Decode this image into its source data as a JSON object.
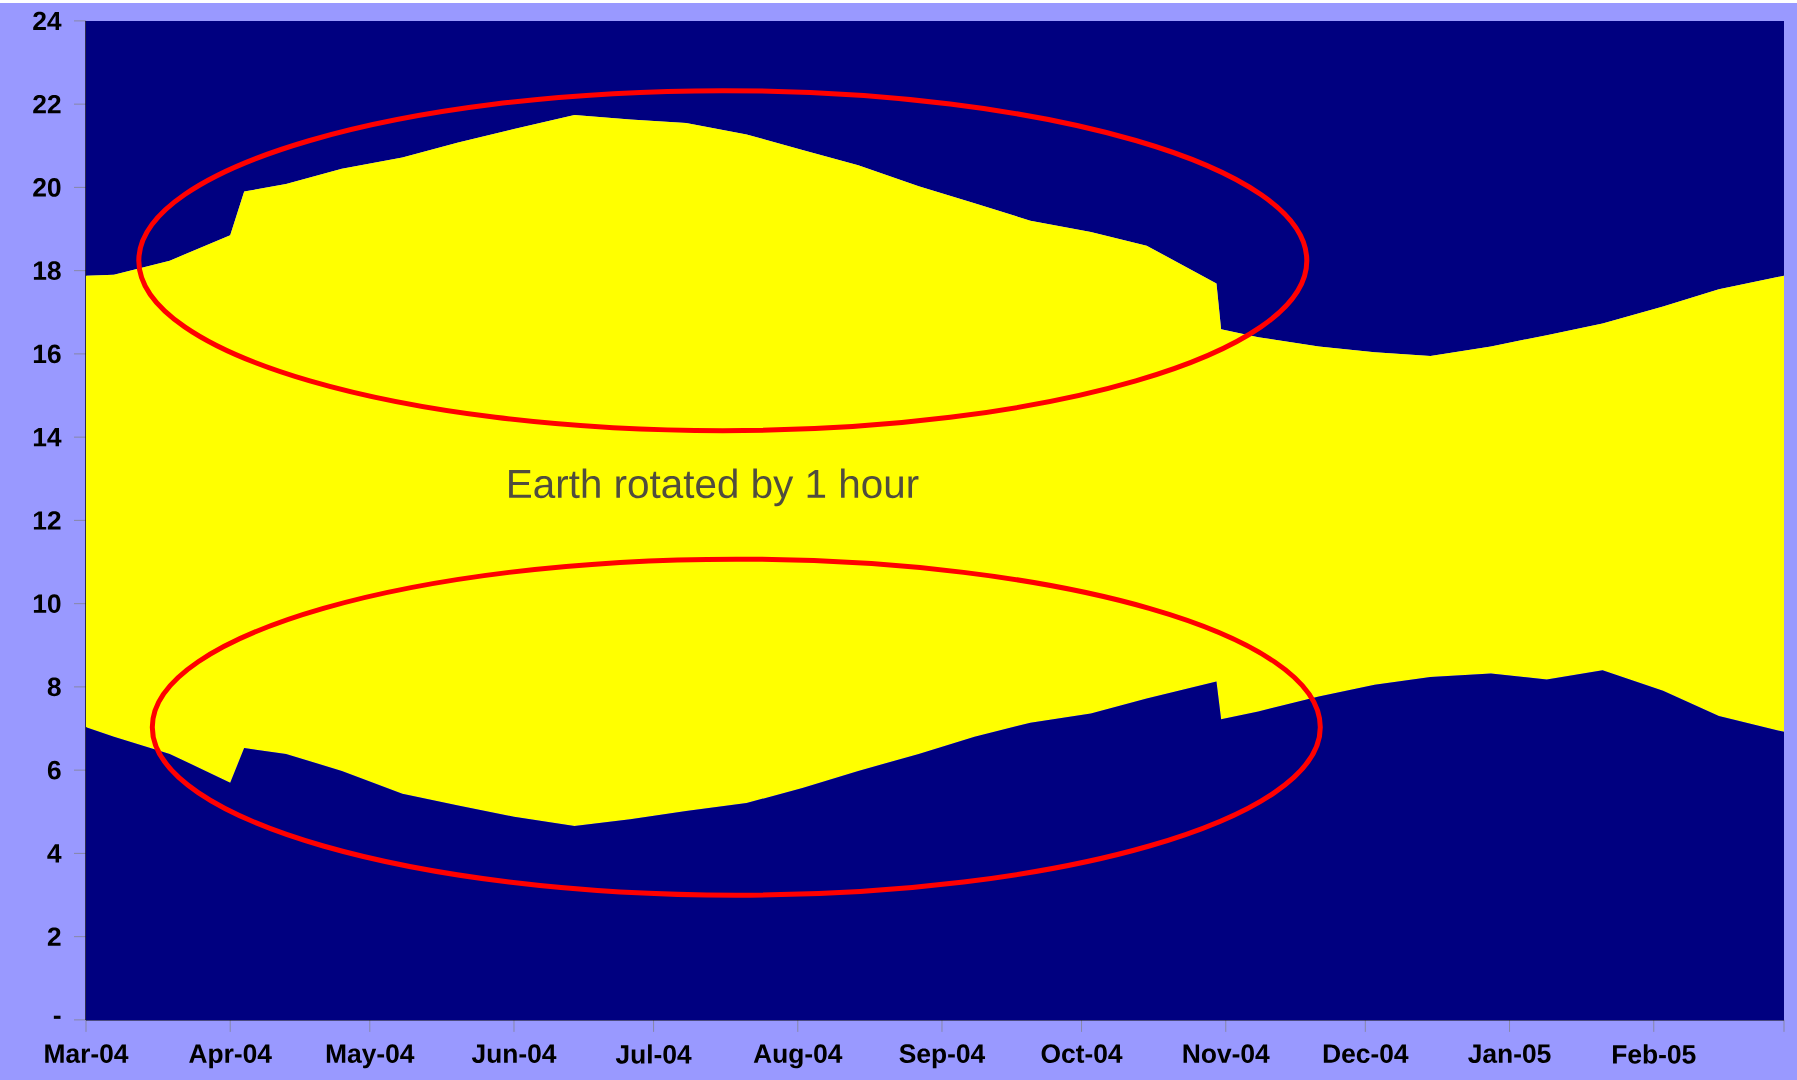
{
  "chart_data": {
    "type": "area",
    "stacked": true,
    "x": [
      "2004-03-01",
      "2004-03-07",
      "2004-03-19",
      "2004-04-01",
      "2004-04-04",
      "2004-04-13",
      "2004-04-25",
      "2004-05-08",
      "2004-05-20",
      "2004-06-01",
      "2004-06-14",
      "2004-06-26",
      "2004-07-08",
      "2004-07-21",
      "2004-08-02",
      "2004-08-14",
      "2004-08-27",
      "2004-09-08",
      "2004-09-20",
      "2004-10-03",
      "2004-10-15",
      "2004-10-30",
      "2004-10-31",
      "2004-11-08",
      "2004-11-21",
      "2004-12-03",
      "2004-12-15",
      "2004-12-28",
      "2005-01-09",
      "2005-01-21",
      "2005-02-03",
      "2005-02-15",
      "2005-03-01"
    ],
    "series": [
      {
        "color": "#000080",
        "values": [
          7.03,
          6.8,
          6.39,
          5.7,
          6.53,
          6.39,
          5.98,
          5.43,
          5.15,
          4.88,
          4.66,
          4.82,
          5.02,
          5.21,
          5.57,
          5.98,
          6.39,
          6.8,
          7.14,
          7.36,
          7.72,
          8.13,
          7.22,
          7.41,
          7.77,
          8.05,
          8.24,
          8.32,
          8.18,
          8.4,
          7.91,
          7.3,
          6.92
        ]
      },
      {
        "color": "#ffff00",
        "values": [
          10.85,
          11.1,
          11.85,
          13.15,
          13.37,
          13.69,
          14.47,
          15.29,
          15.93,
          16.52,
          17.08,
          16.81,
          16.53,
          16.06,
          15.33,
          14.55,
          13.64,
          12.82,
          12.06,
          11.57,
          10.88,
          9.56,
          9.37,
          8.99,
          8.41,
          7.99,
          7.71,
          7.86,
          8.27,
          8.33,
          9.23,
          10.25,
          10.96
        ]
      },
      {
        "color": "#000080",
        "values": [
          6.12,
          6.1,
          5.76,
          5.15,
          4.1,
          3.92,
          3.55,
          3.28,
          2.92,
          2.6,
          2.26,
          2.37,
          2.45,
          2.73,
          3.1,
          3.47,
          3.97,
          4.38,
          4.8,
          5.07,
          5.4,
          6.31,
          7.41,
          7.6,
          7.82,
          7.96,
          8.05,
          7.82,
          7.55,
          7.27,
          6.86,
          6.45,
          6.12
        ]
      }
    ],
    "xlim": [
      "2004-03-01",
      "2005-03-01"
    ],
    "xticks": [
      {
        "value": "2004-03-01",
        "label": "Mar-04"
      },
      {
        "value": "2004-04-01",
        "label": "Apr-04"
      },
      {
        "value": "2004-05-01",
        "label": "May-04"
      },
      {
        "value": "2004-06-01",
        "label": "Jun-04"
      },
      {
        "value": "2004-07-01",
        "label": "Jul-04"
      },
      {
        "value": "2004-08-01",
        "label": "Aug-04"
      },
      {
        "value": "2004-09-01",
        "label": "Sep-04"
      },
      {
        "value": "2004-10-01",
        "label": "Oct-04"
      },
      {
        "value": "2004-11-01",
        "label": "Nov-04"
      },
      {
        "value": "2004-12-01",
        "label": "Dec-04"
      },
      {
        "value": "2005-01-01",
        "label": "Jan-05"
      },
      {
        "value": "2005-02-01",
        "label": "Feb-05"
      },
      {
        "value": "2005-03-01",
        "label": null
      }
    ],
    "ylim": [
      0,
      24
    ],
    "yticks": [
      {
        "value": 0,
        "label": "-"
      },
      2,
      4,
      6,
      8,
      10,
      12,
      14,
      16,
      18,
      20,
      22,
      24
    ],
    "annotations": [
      "Earth rotated by 1 hour"
    ]
  }
}
